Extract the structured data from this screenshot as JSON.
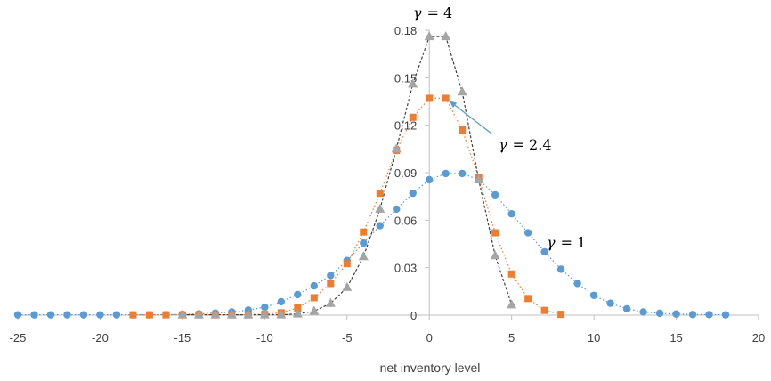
{
  "chart_data": {
    "type": "scatter",
    "title": "",
    "xlabel": "net inventory level",
    "ylabel": "",
    "xlim": [
      -25,
      20
    ],
    "ylim": [
      0,
      0.18
    ],
    "x_ticks": [
      "-25",
      "-20",
      "-15",
      "-10",
      "-5",
      "0",
      "5",
      "10",
      "15",
      "20"
    ],
    "y_ticks": [
      "0",
      "0.03",
      "0.06",
      "0.09",
      "0.12",
      "0.15",
      "0.18"
    ],
    "grid": false,
    "annotations": [
      {
        "label": "γ = 4",
        "text": "γ",
        "value": "= 4"
      },
      {
        "label": "γ = 2.4",
        "text": "γ",
        "value": "= 2.4",
        "arrow_to_x": 1,
        "arrow_to_y": 0.137
      },
      {
        "label": "γ = 1",
        "text": "γ",
        "value": "= 1"
      }
    ],
    "series": [
      {
        "marker": "circle",
        "color": "#5B9BD5",
        "x": [
          -25,
          -24,
          -23,
          -22,
          -21,
          -20,
          -19,
          -18,
          -17,
          -16,
          -15,
          -14,
          -13,
          -12,
          -11,
          -10,
          -9,
          -8,
          -7,
          -6,
          -5,
          -4,
          -3,
          -2,
          -1,
          0,
          1,
          2,
          3,
          4,
          5,
          6,
          7,
          8,
          9,
          10,
          11,
          12,
          13,
          14,
          15,
          16,
          17,
          18
        ],
        "y": [
          0.0002,
          0.0002,
          0.0002,
          0.0002,
          0.0002,
          0.0002,
          0.0002,
          0.0002,
          0.0002,
          0.0003,
          0.0005,
          0.0008,
          0.0013,
          0.002,
          0.0032,
          0.005,
          0.0085,
          0.013,
          0.0185,
          0.025,
          0.0345,
          0.0455,
          0.0565,
          0.067,
          0.077,
          0.0855,
          0.0895,
          0.0895,
          0.0855,
          0.076,
          0.064,
          0.052,
          0.04,
          0.029,
          0.02,
          0.0125,
          0.0075,
          0.004,
          0.002,
          0.0012,
          0.0007,
          0.0004,
          0.0003,
          0.0002
        ]
      },
      {
        "marker": "square",
        "color": "#ED7D31",
        "x": [
          -18,
          -17,
          -16,
          -15,
          -14,
          -13,
          -12,
          -11,
          -10,
          -9,
          -8,
          -7,
          -6,
          -5,
          -4,
          -3,
          -2,
          -1,
          0,
          1,
          2,
          3,
          4,
          5,
          6,
          7,
          8
        ],
        "y": [
          0.0002,
          0.0002,
          0.0002,
          0.0002,
          0.0002,
          0.0002,
          0.0002,
          0.0002,
          0.0005,
          0.0015,
          0.0045,
          0.011,
          0.02,
          0.0325,
          0.0525,
          0.077,
          0.104,
          0.125,
          0.137,
          0.137,
          0.117,
          0.087,
          0.052,
          0.026,
          0.0105,
          0.003,
          0.0005
        ]
      },
      {
        "marker": "triangle",
        "color": "#A5A5A5",
        "x": [
          -15,
          -14,
          -13,
          -12,
          -11,
          -10,
          -9,
          -8,
          -7,
          -6,
          -5,
          -4,
          -3,
          -2,
          -1,
          0,
          1,
          2,
          3,
          4,
          5
        ],
        "y": [
          0.0002,
          0.0002,
          0.0002,
          0.0002,
          0.0002,
          0.0002,
          0.0002,
          0.0008,
          0.0025,
          0.0075,
          0.0175,
          0.037,
          0.067,
          0.105,
          0.146,
          0.176,
          0.176,
          0.141,
          0.0855,
          0.0375,
          0.0065
        ]
      }
    ]
  }
}
